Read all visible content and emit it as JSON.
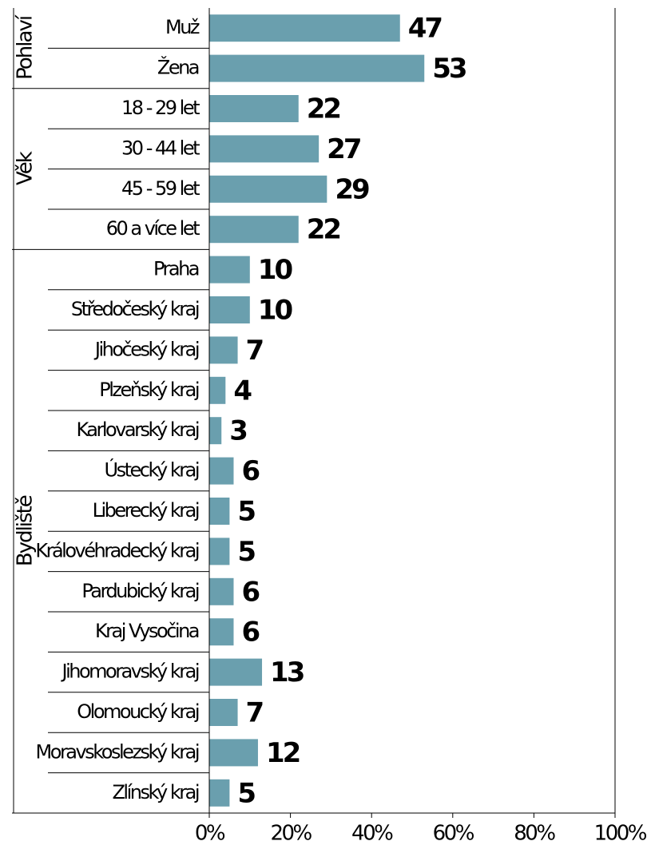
{
  "chart_data": {
    "type": "bar",
    "orientation": "horizontal",
    "color": "#6a9fae",
    "groups": [
      {
        "name": "Pohlaví",
        "categories": [
          "Muž",
          "Žena"
        ],
        "values": [
          47,
          53
        ]
      },
      {
        "name": "Věk",
        "categories": [
          "18 - 29 let",
          "30 - 44 let",
          "45 - 59 let",
          "60 a více let"
        ],
        "values": [
          22,
          27,
          29,
          22
        ]
      },
      {
        "name": "Bydliště",
        "categories": [
          "Praha",
          "Středočeský kraj",
          "Jihočeský kraj",
          "Plzeňský kraj",
          "Karlovarský kraj",
          "Ústecký kraj",
          "Liberecký kraj",
          "Královéhradecký kraj",
          "Pardubický kraj",
          "Kraj Vysočina",
          "Jihomoravský kraj",
          "Olomoucký kraj",
          "Moravskoslezský kraj",
          "Zlínský kraj"
        ],
        "values": [
          10,
          10,
          7,
          4,
          3,
          6,
          5,
          5,
          6,
          6,
          13,
          7,
          12,
          5
        ]
      }
    ],
    "xlim": [
      0,
      100
    ],
    "xticks": [
      {
        "value": 0,
        "label": "0%"
      },
      {
        "value": 20,
        "label": "20%"
      },
      {
        "value": 40,
        "label": "40%"
      },
      {
        "value": 60,
        "label": "60%"
      },
      {
        "value": 80,
        "label": "80%"
      },
      {
        "value": 100,
        "label": "100%"
      }
    ]
  }
}
